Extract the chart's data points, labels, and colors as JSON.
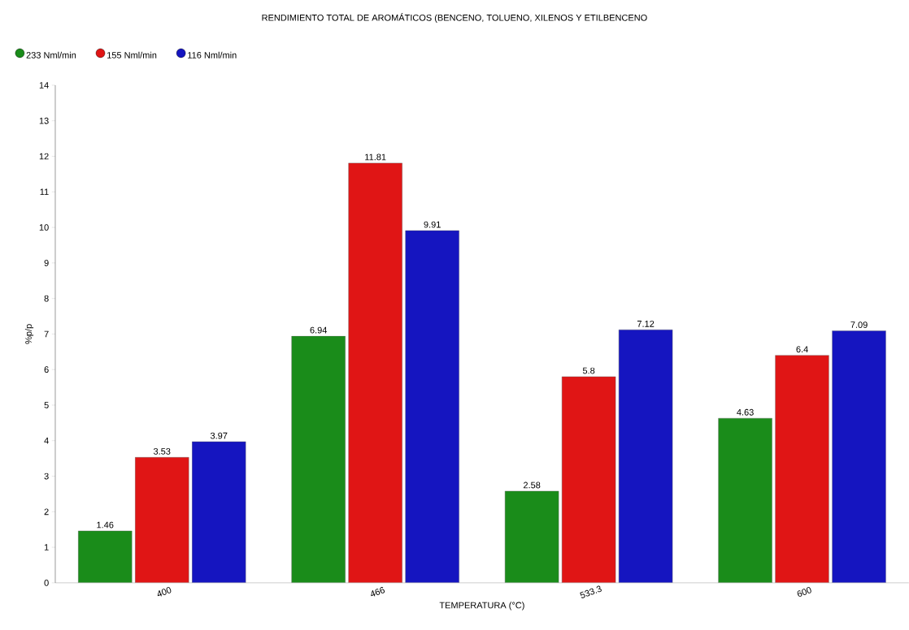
{
  "chart_data": {
    "type": "bar",
    "title": "RENDIMIENTO TOTAL DE AROMÁTICOS (BENCENO, TOLUENO, XILENOS Y ETILBENCENO",
    "xlabel": "TEMPERATURA (°C)",
    "ylabel": "%p/p",
    "categories": [
      "400",
      "466",
      "533.3",
      "600"
    ],
    "series": [
      {
        "name": "233 Nml/min",
        "color": "#1a8c1a",
        "values": [
          1.46,
          6.94,
          2.58,
          4.63
        ]
      },
      {
        "name": "155 Nml/min",
        "color": "#e01515",
        "values": [
          3.53,
          11.81,
          5.8,
          6.4
        ]
      },
      {
        "name": "116 Nml/min",
        "color": "#1515c0",
        "values": [
          3.97,
          9.91,
          7.12,
          7.09
        ]
      }
    ],
    "ylim": [
      0,
      14
    ],
    "yticks": [
      0,
      1,
      2,
      3,
      4,
      5,
      6,
      7,
      8,
      9,
      10,
      11,
      12,
      13,
      14
    ],
    "data_labels": true,
    "legend": "top left"
  }
}
